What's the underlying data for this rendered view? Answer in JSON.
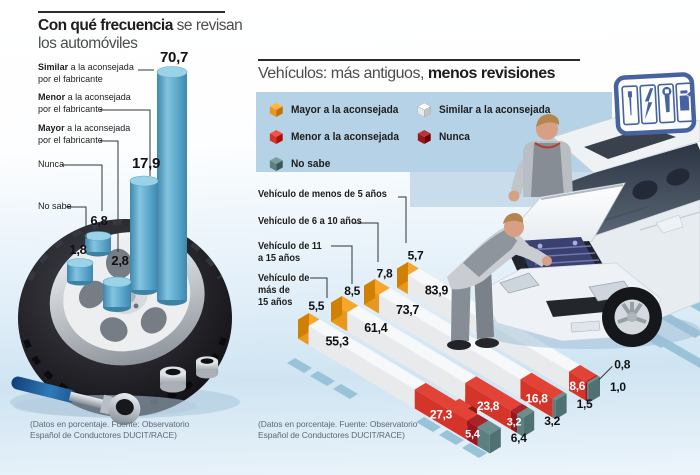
{
  "ui": {
    "left": {
      "title_bold": "Con qué frecuencia",
      "title_rest": " se revisan",
      "title_line2": "los automóviles",
      "labels": [
        {
          "bold": "Similar",
          "rest": " a la aconsejada",
          "line2": "por el fabricante"
        },
        {
          "bold": "Menor",
          "rest": " a la aconsejada",
          "line2": "por el fabricante"
        },
        {
          "bold": "Mayor",
          "rest": " a la aconsejada",
          "line2": "por el fabricante"
        },
        {
          "text": "Nunca"
        },
        {
          "text": "No sabe"
        }
      ],
      "source_line1": "(Datos en porcentaje. Fuente: Observatorio",
      "source_line2": "Español de Conductores DUCIT/RACE)"
    },
    "right": {
      "title_normal": "Vehículos: más antiguos, ",
      "title_bold": "menos revisiones",
      "legend": [
        {
          "label": "Mayor a la aconsejada",
          "color": "#e8981c"
        },
        {
          "label": "Menor a la aconsejada",
          "color": "#d53428"
        },
        {
          "label": "No sabe",
          "color": "#5d7f80"
        },
        {
          "label": "Similar a la aconsejada",
          "color": "#e9eaec"
        },
        {
          "label": "Nunca",
          "color": "#9c151a"
        }
      ],
      "rows": [
        {
          "lines": [
            "Vehículo de menos de 5 años"
          ]
        },
        {
          "lines": [
            "Vehículo de 6 a 10 años"
          ]
        },
        {
          "lines": [
            "Vehículo de 11",
            "a 15 años"
          ]
        },
        {
          "lines": [
            "Vehículo de",
            "más de",
            "15 años"
          ]
        }
      ],
      "sign_icons": [
        "screwdriver-icon",
        "spark-icon",
        "wrench-icon",
        "oil-can-icon"
      ],
      "source_line1": "(Datos en porcentaje. Fuente: Observatorio",
      "source_line2": "Español de Conductores DUCIT/RACE)"
    }
  },
  "chart_data": [
    {
      "type": "bar",
      "title": "Con qué frecuencia se revisan los automóviles",
      "unit": "percent",
      "categories": [
        "Similar a la aconsejada por el fabricante",
        "Menor a la aconsejada por el fabricante",
        "Mayor a la aconsejada por el fabricante",
        "Nunca",
        "No sabe"
      ],
      "values": [
        70.7,
        17.9,
        6.8,
        1.8,
        2.8
      ],
      "value_labels": [
        "70,7",
        "17,9",
        "6,8",
        "1,8",
        "2,8"
      ],
      "bar_color": "#5ba7cd",
      "source": "(Datos en porcentaje. Fuente: Observatorio Español de Conductores DUCIT/RACE)"
    },
    {
      "type": "stacked-bar",
      "title": "Vehículos: más antiguos, menos revisiones",
      "unit": "percent",
      "categories": [
        "Vehículo de menos de 5 años",
        "Vehículo de 6 a 10 años",
        "Vehículo de 11 a 15 años",
        "Vehículo de más de 15 años"
      ],
      "series": [
        {
          "name": "Mayor a la aconsejada",
          "color": "#e8981c",
          "values": [
            5.7,
            7.8,
            8.5,
            5.5
          ],
          "labels": [
            "5,7",
            "7,8",
            "8,5",
            "5,5"
          ]
        },
        {
          "name": "Similar a la aconsejada",
          "color": "#e9eaec",
          "values": [
            83.9,
            73.7,
            61.4,
            55.3
          ],
          "labels": [
            "83,9",
            "73,7",
            "61,4",
            "55,3"
          ]
        },
        {
          "name": "Menor a la aconsejada",
          "color": "#d53428",
          "values": [
            8.6,
            16.8,
            23.8,
            27.3
          ],
          "labels": [
            "8,6",
            "16,8",
            "23,8",
            "27,3"
          ]
        },
        {
          "name": "Nunca",
          "color": "#9c151a",
          "values": [
            0.8,
            null,
            3.2,
            5.4
          ],
          "labels": [
            "0,8",
            "",
            "3,2",
            "5,4"
          ]
        },
        {
          "name": "No sabe",
          "color": "#5d7f80",
          "values": [
            1.0,
            1.5,
            3.2,
            6.4
          ],
          "labels": [
            "1,0",
            "1,5",
            "3,2",
            "6,4"
          ]
        }
      ],
      "source": "(Datos en porcentaje. Fuente: Observatorio Español de Conductores DUCIT/RACE)"
    }
  ]
}
